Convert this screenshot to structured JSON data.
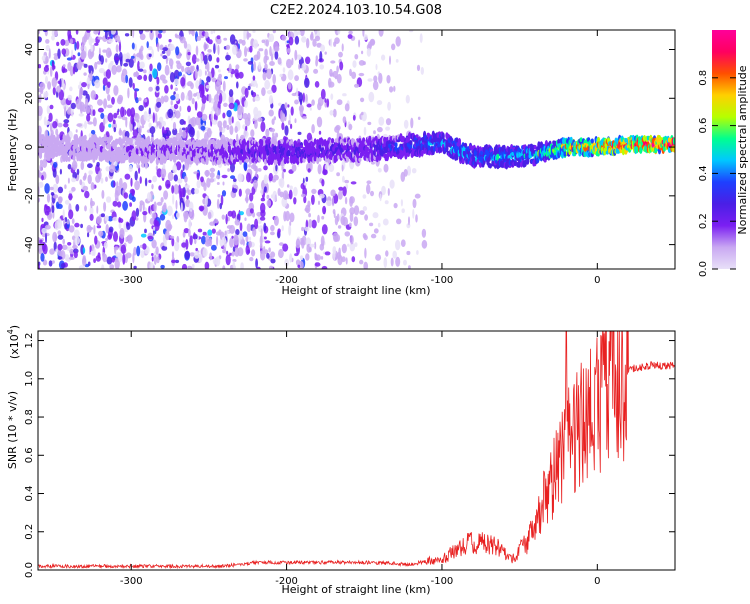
{
  "page": {
    "title": "C2E2.2024.103.10.54.G08"
  },
  "chart_data": [
    {
      "type": "heatmap",
      "name": "spectrogram",
      "xlabel": "Height of straight line (km)",
      "ylabel": "Frequency (Hz)",
      "xlim": [
        -360,
        50
      ],
      "ylim": [
        -50,
        48
      ],
      "xticks": [
        -300,
        -200,
        -100,
        0
      ],
      "yticks": [
        -40,
        -20,
        0,
        20,
        40
      ],
      "colorbar": {
        "label": "Normalized spectral amplitude",
        "ticks": [
          "0.0",
          "0.2",
          "0.4",
          "0.6",
          "0.8"
        ],
        "tick_values": [
          0.0,
          0.2,
          0.4,
          0.6,
          0.8
        ],
        "range": [
          0,
          1
        ],
        "colormap": [
          "#e8e0f8",
          "#c9a8f2",
          "#7b1ff2",
          "#4a1fe6",
          "#1e40ff",
          "#00c8ff",
          "#00ff90",
          "#b6ff00",
          "#ffd000",
          "#ff5000",
          "#ff0060",
          "#ff0099"
        ]
      },
      "ridge": [
        {
          "x": -360,
          "y": 0,
          "amp": 0.12
        },
        {
          "x": -250,
          "y": -2,
          "amp": 0.2
        },
        {
          "x": -200,
          "y": -2,
          "amp": 0.3
        },
        {
          "x": -150,
          "y": -1,
          "amp": 0.28
        },
        {
          "x": -130,
          "y": 0,
          "amp": 0.35
        },
        {
          "x": -100,
          "y": 2,
          "amp": 0.45
        },
        {
          "x": -80,
          "y": -4,
          "amp": 0.45
        },
        {
          "x": -60,
          "y": -4,
          "amp": 0.45
        },
        {
          "x": -40,
          "y": -3,
          "amp": 0.5
        },
        {
          "x": -20,
          "y": 0,
          "amp": 0.75
        },
        {
          "x": 0,
          "y": 0,
          "amp": 0.8
        },
        {
          "x": 20,
          "y": 1,
          "amp": 0.9
        },
        {
          "x": 50,
          "y": 1,
          "amp": 0.95
        }
      ],
      "noise_region": {
        "x_from": -360,
        "x_to": -110,
        "y_from": -50,
        "y_to": 48
      }
    },
    {
      "type": "line",
      "name": "snr",
      "xlabel": "Height of straight line (km)",
      "ylabel": "SNR (10 * v/v)",
      "scale_label": "(x10",
      "scale_exponent": "4",
      "scale_close": ")",
      "xlim": [
        -360,
        50
      ],
      "ylim": [
        0,
        1.25
      ],
      "xticks": [
        -300,
        -200,
        -100,
        0
      ],
      "yticks": [
        "0.0",
        "0.2",
        "0.4",
        "0.6",
        "0.8",
        "1.0",
        "1.2"
      ],
      "ytick_values": [
        0.0,
        0.2,
        0.4,
        0.6,
        0.8,
        1.0,
        1.2
      ],
      "line_color": "#e82020",
      "envelope": [
        {
          "x": -360,
          "y": 0.02
        },
        {
          "x": -240,
          "y": 0.02
        },
        {
          "x": -220,
          "y": 0.04
        },
        {
          "x": -150,
          "y": 0.04
        },
        {
          "x": -120,
          "y": 0.03
        },
        {
          "x": -100,
          "y": 0.06
        },
        {
          "x": -80,
          "y": 0.15
        },
        {
          "x": -65,
          "y": 0.12
        },
        {
          "x": -55,
          "y": 0.05
        },
        {
          "x": -45,
          "y": 0.15
        },
        {
          "x": -35,
          "y": 0.35
        },
        {
          "x": -25,
          "y": 0.55
        },
        {
          "x": -15,
          "y": 0.7
        },
        {
          "x": -5,
          "y": 0.82
        },
        {
          "x": 5,
          "y": 0.95
        },
        {
          "x": 20,
          "y": 1.05
        },
        {
          "x": 35,
          "y": 1.07
        },
        {
          "x": 50,
          "y": 1.07
        }
      ],
      "peak": {
        "x": -20,
        "y": 1.25
      }
    }
  ]
}
